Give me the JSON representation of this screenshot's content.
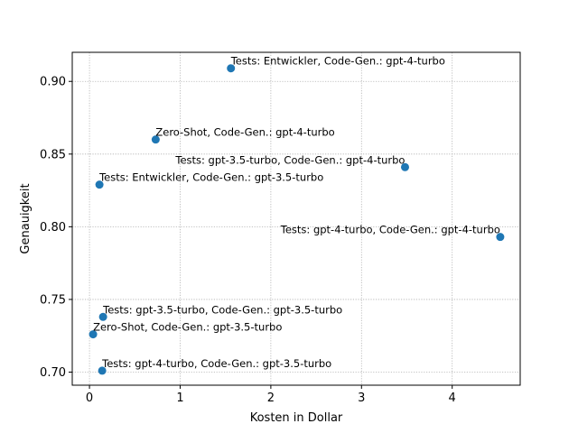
{
  "chart_data": {
    "type": "scatter",
    "title": "",
    "xlabel": "Kosten in Dollar",
    "ylabel": "Genauigkeit",
    "xlim": [
      -0.19,
      4.75
    ],
    "ylim": [
      0.691,
      0.92
    ],
    "xticks": [
      0,
      1,
      2,
      3,
      4
    ],
    "yticks": [
      0.7,
      0.75,
      0.8,
      0.85,
      0.9
    ],
    "xtick_labels": [
      "0",
      "1",
      "2",
      "3",
      "4"
    ],
    "ytick_labels": [
      "0.70",
      "0.75",
      "0.80",
      "0.85",
      "0.90"
    ],
    "grid": true,
    "marker_color": "#1f77b4",
    "points": [
      {
        "x": 1.56,
        "y": 0.909,
        "label": "Tests: Entwickler, Code-Gen.: gpt-4-turbo",
        "label_anchor": "start"
      },
      {
        "x": 0.73,
        "y": 0.86,
        "label": "Zero-Shot, Code-Gen.: gpt-4-turbo",
        "label_anchor": "start"
      },
      {
        "x": 3.48,
        "y": 0.841,
        "label": "Tests: gpt-3.5-turbo, Code-Gen.: gpt-4-turbo",
        "label_anchor": "end"
      },
      {
        "x": 0.11,
        "y": 0.829,
        "label": "Tests: Entwickler, Code-Gen.: gpt-3.5-turbo",
        "label_anchor": "start"
      },
      {
        "x": 4.53,
        "y": 0.793,
        "label": "Tests: gpt-4-turbo, Code-Gen.: gpt-4-turbo",
        "label_anchor": "end"
      },
      {
        "x": 0.15,
        "y": 0.738,
        "label": "Tests: gpt-3.5-turbo, Code-Gen.: gpt-3.5-turbo",
        "label_anchor": "start"
      },
      {
        "x": 0.04,
        "y": 0.726,
        "label": "Zero-Shot, Code-Gen.: gpt-3.5-turbo",
        "label_anchor": "start"
      },
      {
        "x": 0.14,
        "y": 0.701,
        "label": "Tests: gpt-4-turbo, Code-Gen.: gpt-3.5-turbo",
        "label_anchor": "start"
      }
    ]
  }
}
